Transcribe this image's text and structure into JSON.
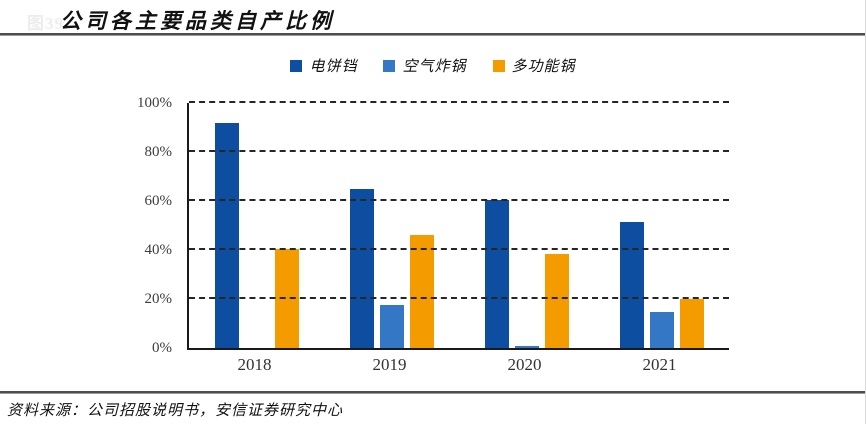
{
  "figure": {
    "faint_label": "图39.",
    "title": "公司各主要品类自产比例",
    "source": "资料来源：公司招股说明书，安信证券研究中心"
  },
  "colors": {
    "series1": "#0d4ea0",
    "series2": "#3377c5",
    "series3": "#f49b00",
    "axis": "#1a1a1a",
    "gridline": "#262626",
    "rule": "#4d4d4d"
  },
  "chart_data": {
    "type": "bar",
    "title": "公司各主要品类自产比例",
    "categories": [
      "2018",
      "2019",
      "2020",
      "2021"
    ],
    "series": [
      {
        "name": "电饼铛",
        "color": "#0d4ea0",
        "values": [
          92,
          65,
          60.5,
          51.5
        ]
      },
      {
        "name": "空气炸锅",
        "color": "#3377c5",
        "values": [
          0,
          17.5,
          1,
          14.5
        ]
      },
      {
        "name": "多功能锅",
        "color": "#f49b00",
        "values": [
          40.5,
          46,
          38.5,
          20
        ]
      }
    ],
    "ylabel": "",
    "xlabel": "",
    "ylim": [
      0,
      100
    ],
    "yticks": [
      "0%",
      "20%",
      "40%",
      "60%",
      "80%",
      "100%"
    ],
    "ytick_values": [
      0,
      20,
      40,
      60,
      80,
      100
    ],
    "grid": "horizontal-dashed",
    "legend_position": "top-center"
  }
}
